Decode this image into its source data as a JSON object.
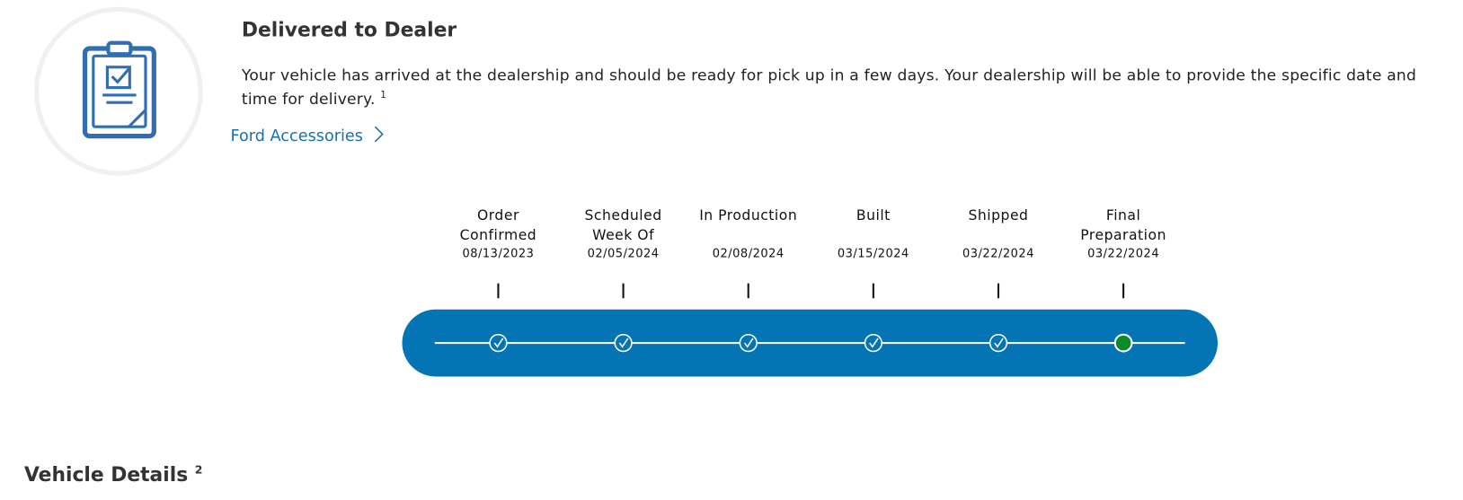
{
  "header": {
    "title": "Delivered to Dealer",
    "description": "Your vehicle has arrived at the dealership and should be ready for pick up in a few days. Your dealership will be able to provide the specific date and time for delivery.",
    "footnote": "1",
    "link": "Ford Accessories"
  },
  "steps": [
    {
      "label": "Order Confirmed",
      "date": "08/13/2023"
    },
    {
      "label": "Scheduled Week Of",
      "date": "02/05/2024"
    },
    {
      "label": "In Production",
      "date": "02/08/2024"
    },
    {
      "label": "Built",
      "date": "03/15/2024"
    },
    {
      "label": "Shipped",
      "date": "03/22/2024"
    },
    {
      "label": "Final Preparation",
      "date": "03/22/2024"
    }
  ],
  "section": {
    "title": "Vehicle Details",
    "footnote": "2"
  }
}
